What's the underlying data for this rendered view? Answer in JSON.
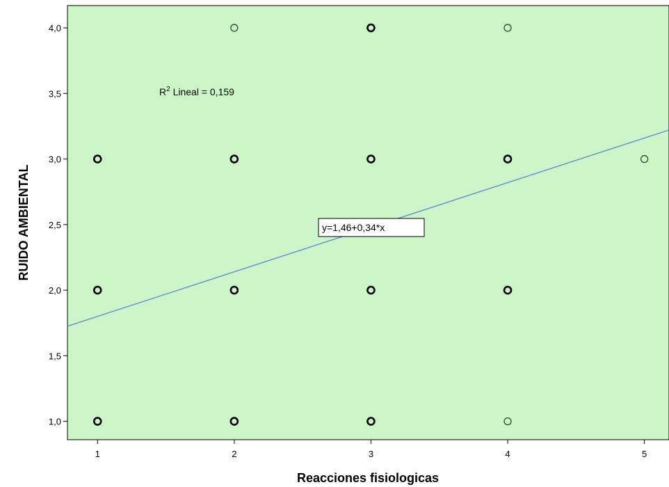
{
  "chart_data": {
    "type": "scatter",
    "xlabel": "Reacciones fisiologicas",
    "ylabel": "RUIDO AMBIENTAL",
    "xlim": [
      0.78,
      5.18
    ],
    "ylim": [
      0.86,
      4.17
    ],
    "x_ticks": [
      "1",
      "2",
      "3",
      "4",
      "5"
    ],
    "x_tick_values": [
      1,
      2,
      3,
      4,
      5
    ],
    "y_ticks": [
      "1,0",
      "1,5",
      "2,0",
      "2,5",
      "3,0",
      "3,5",
      "4,0"
    ],
    "y_tick_values": [
      1.0,
      1.5,
      2.0,
      2.5,
      3.0,
      3.5,
      4.0
    ],
    "grid": false,
    "background_color": "#ccf5c8",
    "line_color": "#5b84dc",
    "marker_color": "#000000",
    "points": [
      {
        "x": 1,
        "y": 3,
        "weight": "bold"
      },
      {
        "x": 1,
        "y": 2,
        "weight": "bold"
      },
      {
        "x": 1,
        "y": 1,
        "weight": "bold"
      },
      {
        "x": 2,
        "y": 4,
        "weight": "light"
      },
      {
        "x": 2,
        "y": 3,
        "weight": "bold"
      },
      {
        "x": 2,
        "y": 2,
        "weight": "bold"
      },
      {
        "x": 2,
        "y": 1,
        "weight": "bold"
      },
      {
        "x": 3,
        "y": 4,
        "weight": "bold"
      },
      {
        "x": 3,
        "y": 3,
        "weight": "bold"
      },
      {
        "x": 3,
        "y": 2,
        "weight": "bold"
      },
      {
        "x": 3,
        "y": 1,
        "weight": "bold"
      },
      {
        "x": 4,
        "y": 4,
        "weight": "light"
      },
      {
        "x": 4,
        "y": 3,
        "weight": "bold"
      },
      {
        "x": 4,
        "y": 2,
        "weight": "bold"
      },
      {
        "x": 4,
        "y": 1,
        "weight": "light"
      },
      {
        "x": 5,
        "y": 3,
        "weight": "light"
      }
    ],
    "fit_line": {
      "intercept": 1.46,
      "slope": 0.34
    },
    "annotations": {
      "r2_prefix": "R",
      "r2_sup": "2",
      "r2_text": " Lineal = 0,159",
      "equation": "y=1,46+0,34*x"
    }
  }
}
